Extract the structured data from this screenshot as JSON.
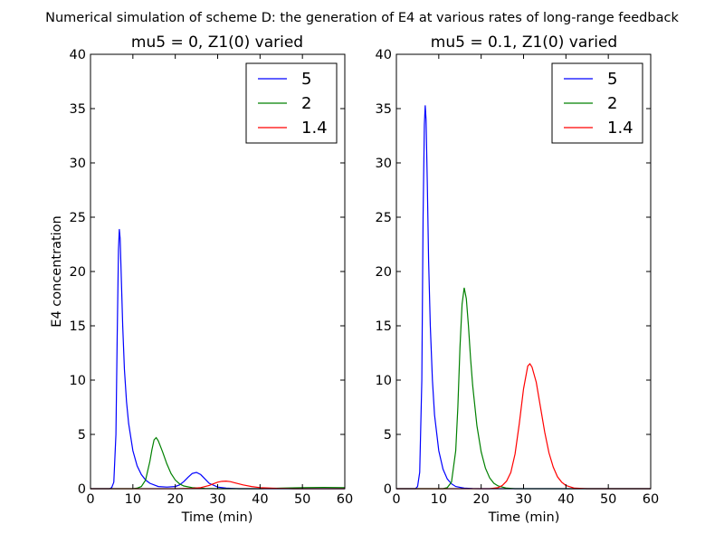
{
  "figure": {
    "suptitle": "Numerical simulation of scheme D: the generation of E4 at various rates of long-range feedback"
  },
  "chart_data": [
    {
      "type": "line",
      "title": "mu5 = 0, Z1(0) varied",
      "xlabel": "Time (min)",
      "ylabel": "E4 concentration",
      "xlim": [
        0,
        60
      ],
      "ylim": [
        0,
        40
      ],
      "xticks": [
        0,
        10,
        20,
        30,
        40,
        50,
        60
      ],
      "yticks": [
        0,
        5,
        10,
        15,
        20,
        25,
        30,
        35,
        40
      ],
      "grid": false,
      "legend_position": "top-right",
      "series": [
        {
          "name": "5",
          "color": "#0000ff",
          "x": [
            0,
            4.5,
            5.0,
            5.5,
            6.0,
            6.3,
            6.6,
            6.8,
            7.0,
            7.3,
            7.6,
            8.0,
            8.5,
            9.0,
            10.0,
            11.0,
            12.0,
            13.0,
            14.0,
            16.0,
            18.0,
            20.0,
            21.0,
            22.0,
            23.0,
            24.0,
            25.0,
            26.0,
            27.0,
            28.0,
            30.0,
            32.0,
            35.0,
            60.0
          ],
          "y": [
            0,
            0,
            0.1,
            0.6,
            5.0,
            14.0,
            22.0,
            23.9,
            23.0,
            19.0,
            15.0,
            11.0,
            8.0,
            6.0,
            3.5,
            2.1,
            1.3,
            0.8,
            0.5,
            0.2,
            0.15,
            0.2,
            0.35,
            0.65,
            1.05,
            1.4,
            1.5,
            1.3,
            0.9,
            0.5,
            0.15,
            0.05,
            0,
            0
          ]
        },
        {
          "name": "2",
          "color": "#008000",
          "x": [
            0,
            10.0,
            11.0,
            12.0,
            13.0,
            14.0,
            14.5,
            15.0,
            15.5,
            16.0,
            17.0,
            18.0,
            19.0,
            20.0,
            21.0,
            22.0,
            24.0,
            27.0,
            30.0,
            40.0,
            45.0,
            50.0,
            55.0,
            60.0
          ],
          "y": [
            0,
            0,
            0.05,
            0.2,
            0.8,
            2.5,
            3.6,
            4.5,
            4.7,
            4.4,
            3.4,
            2.3,
            1.4,
            0.8,
            0.45,
            0.25,
            0.1,
            0.02,
            0,
            0,
            0.05,
            0.1,
            0.12,
            0.1
          ]
        },
        {
          "name": "1.4",
          "color": "#ff0000",
          "x": [
            0,
            20.0,
            24.0,
            26.0,
            28.0,
            29.0,
            30.0,
            31.0,
            32.0,
            33.0,
            34.0,
            36.0,
            38.0,
            40.0,
            44.0,
            48.0,
            60.0
          ],
          "y": [
            0,
            0,
            0.03,
            0.1,
            0.3,
            0.45,
            0.6,
            0.68,
            0.7,
            0.65,
            0.55,
            0.35,
            0.2,
            0.1,
            0.03,
            0,
            0
          ]
        }
      ]
    },
    {
      "type": "line",
      "title": "mu5 = 0.1, Z1(0) varied",
      "xlabel": "Time (min)",
      "ylabel": "",
      "xlim": [
        0,
        60
      ],
      "ylim": [
        0,
        40
      ],
      "xticks": [
        0,
        10,
        20,
        30,
        40,
        50,
        60
      ],
      "yticks": [
        0,
        5,
        10,
        15,
        20,
        25,
        30,
        35,
        40
      ],
      "grid": false,
      "legend_position": "top-right",
      "series": [
        {
          "name": "5",
          "color": "#0000ff",
          "x": [
            0,
            4.5,
            5.0,
            5.5,
            6.0,
            6.3,
            6.6,
            6.8,
            7.0,
            7.3,
            7.6,
            8.0,
            8.5,
            9.0,
            10.0,
            11.0,
            12.0,
            13.0,
            14.0,
            16.0,
            18.0,
            20.0,
            60.0
          ],
          "y": [
            0,
            0,
            0.2,
            1.5,
            10.0,
            25.0,
            33.5,
            35.3,
            34.0,
            28.0,
            21.0,
            15.0,
            10.0,
            6.8,
            3.5,
            1.8,
            0.9,
            0.45,
            0.2,
            0.05,
            0.01,
            0,
            0
          ]
        },
        {
          "name": "2",
          "color": "#008000",
          "x": [
            0,
            11.0,
            12.0,
            13.0,
            14.0,
            14.5,
            15.0,
            15.5,
            16.0,
            16.5,
            17.0,
            17.5,
            18.0,
            19.0,
            20.0,
            21.0,
            22.0,
            23.0,
            24.0,
            26.0,
            28.0,
            60.0
          ],
          "y": [
            0,
            0,
            0.1,
            0.6,
            3.5,
            7.5,
            13.0,
            17.0,
            18.5,
            17.5,
            15.0,
            12.0,
            9.5,
            5.8,
            3.4,
            1.9,
            1.0,
            0.5,
            0.25,
            0.05,
            0,
            0
          ]
        },
        {
          "name": "1.4",
          "color": "#ff0000",
          "x": [
            0,
            22.0,
            24.0,
            25.0,
            26.0,
            27.0,
            28.0,
            29.0,
            30.0,
            31.0,
            31.5,
            32.0,
            33.0,
            34.0,
            35.0,
            36.0,
            37.0,
            38.0,
            39.0,
            40.0,
            42.0,
            45.0,
            60.0
          ],
          "y": [
            0,
            0,
            0.1,
            0.3,
            0.7,
            1.5,
            3.2,
            6.0,
            9.2,
            11.3,
            11.5,
            11.2,
            9.8,
            7.5,
            5.2,
            3.3,
            2.0,
            1.1,
            0.6,
            0.3,
            0.05,
            0,
            0
          ]
        }
      ]
    }
  ]
}
